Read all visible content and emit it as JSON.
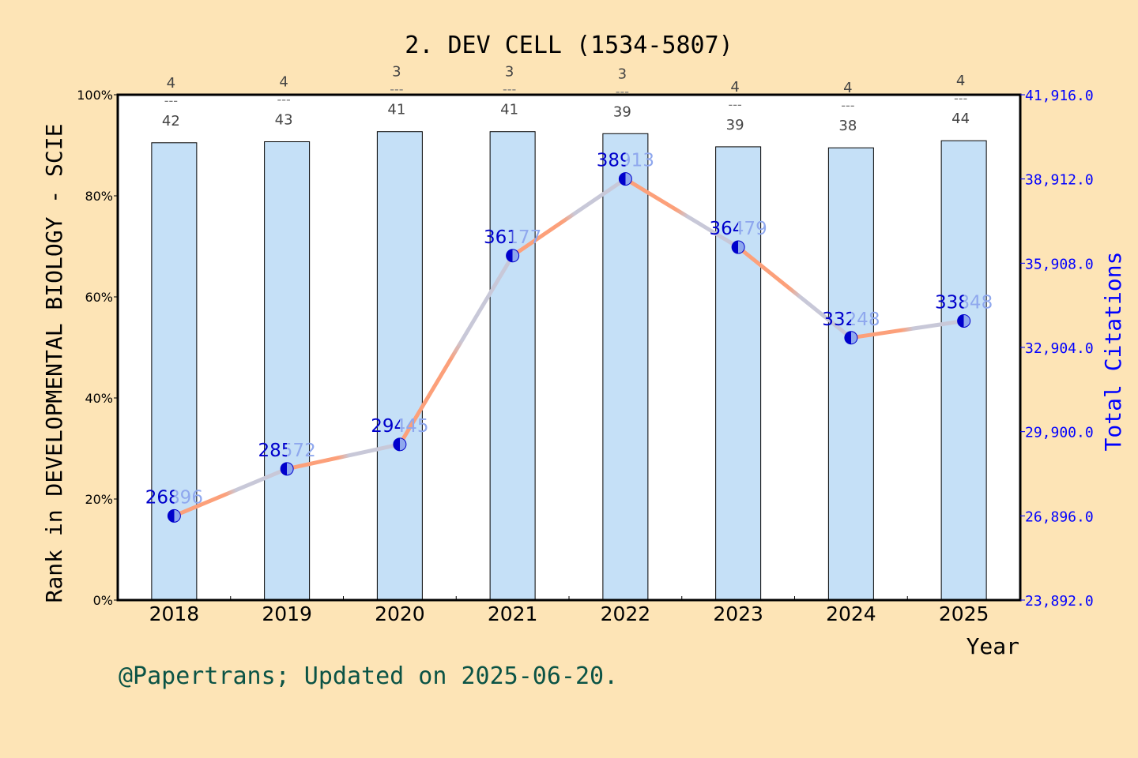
{
  "chart_data": {
    "type": "bar+line",
    "title": "2. DEV CELL (1534-5807)",
    "xlabel": "Year",
    "ylabel": "Rank in DEVELOPMENTAL BIOLOGY - SCIE",
    "y2label": "Total Citations",
    "categories": [
      "2018",
      "2019",
      "2020",
      "2021",
      "2022",
      "2023",
      "2024",
      "2025"
    ],
    "rank_labels": [
      {
        "rank": "4",
        "total": "42"
      },
      {
        "rank": "4",
        "total": "43"
      },
      {
        "rank": "3",
        "total": "41"
      },
      {
        "rank": "3",
        "total": "41"
      },
      {
        "rank": "3",
        "total": "39"
      },
      {
        "rank": "4",
        "total": "39"
      },
      {
        "rank": "4",
        "total": "38"
      },
      {
        "rank": "4",
        "total": "44"
      }
    ],
    "rank_percentile": [
      90.5,
      90.7,
      92.7,
      92.7,
      92.3,
      89.7,
      89.5,
      90.9
    ],
    "citations": [
      26896,
      28572,
      29445,
      36177,
      38913,
      36479,
      33248,
      33848
    ],
    "ylim": [
      0,
      100
    ],
    "yticks": [
      "0%",
      "20%",
      "40%",
      "60%",
      "80%",
      "100%"
    ],
    "y2lim": [
      23892,
      41916
    ],
    "y2ticks": [
      "23,892.0",
      "26,896.0",
      "29,900.0",
      "32,904.0",
      "35,908.0",
      "38,912.0",
      "41,916.0"
    ],
    "colors": {
      "bar": "#c5e0f7",
      "line_start": "#fca07a",
      "line_end": "#c8c8d8",
      "point": "#0000cc",
      "point_light": "#8fa8ee",
      "axis2": "#0000ff",
      "rank_text": "#444444",
      "footer": "#0b5345",
      "background": "#fde4b6"
    }
  },
  "footer": "@Papertrans; Updated on 2025-06-20."
}
